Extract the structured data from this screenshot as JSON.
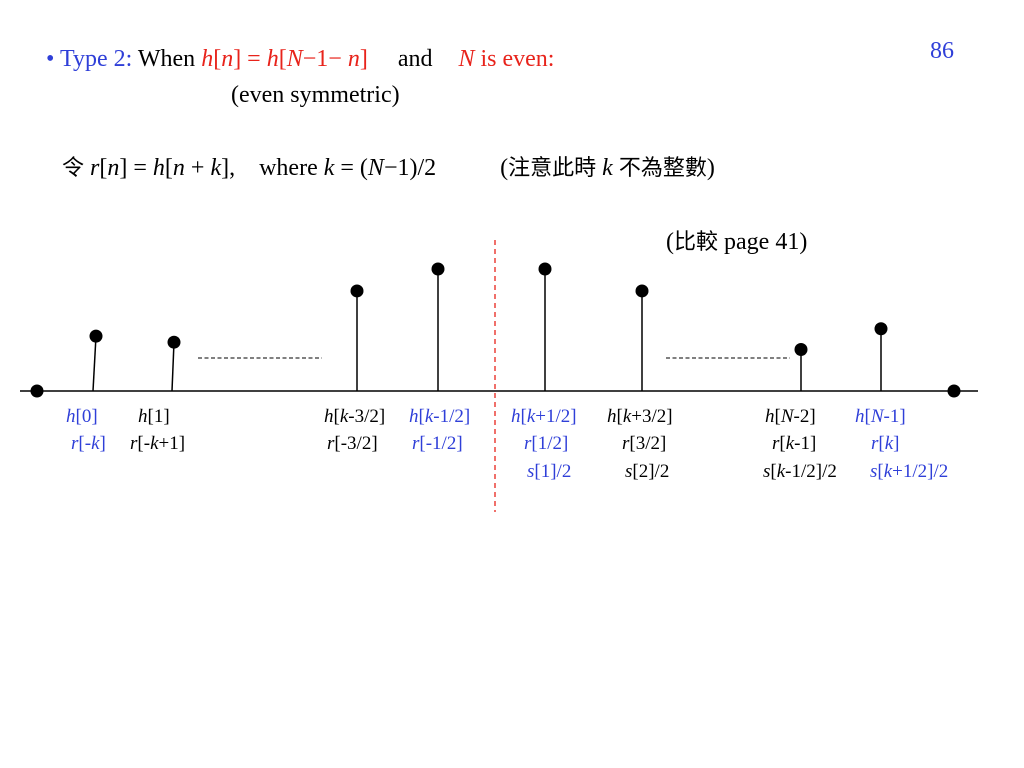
{
  "page_number": "86",
  "header": {
    "bullet": "•",
    "type_label": "Type 2:",
    "when": "When",
    "condition": "h[n] = h[N−1− n]",
    "and": "and",
    "n_even": "N is even:",
    "even_symmetric": "(even symmetric)"
  },
  "definition": {
    "prefix": "令",
    "formula": "r[n] = h[n + k],",
    "where_text": "where k = (N−1)/2",
    "note": "(注意此時 k 不為整數)"
  },
  "compare": "(比較 page 41)",
  "colors": {
    "red": "#e8231b",
    "blue": "#2f3fd8",
    "black": "#000000",
    "center_line": "#e8231b"
  },
  "stem_heights_relative": [
    0,
    0.45,
    0.4,
    0,
    0,
    0.82,
    1.0,
    1.0,
    0.82,
    0,
    0,
    0.34,
    0.51,
    0
  ],
  "labels": {
    "h0": "h[0]",
    "h1": "h[1]",
    "hk32": "h[k-3/2]",
    "hk12": "h[k-1/2]",
    "hkp12": "h[k+1/2]",
    "hkp32": "h[k+3/2]",
    "hN2": "h[N-2]",
    "hN1": "h[N-1]",
    "rmk": "r[-k]",
    "rmkp1": "r[-k+1]",
    "rm32": "r[-3/2]",
    "rm12": "r[-1/2]",
    "r12": "r[1/2]",
    "r32": "r[3/2]",
    "rkm1": "r[k-1]",
    "rk": "r[k]",
    "s1": "s[1]/2",
    "s2": "s[2]/2",
    "skm12": "s[k-1/2]/2",
    "skp12": "s[k+1/2]/2"
  }
}
